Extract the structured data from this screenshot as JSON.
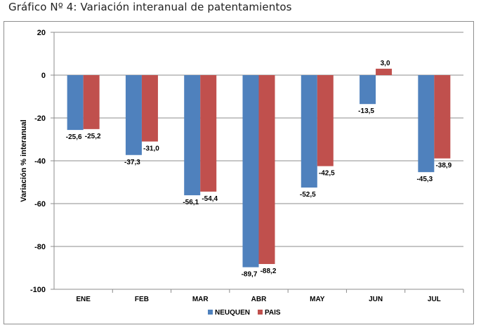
{
  "title": "Gráfico Nº 4: Variación interanual de patentamientos",
  "chart_data": {
    "type": "bar",
    "categories": [
      "ENE",
      "FEB",
      "MAR",
      "ABR",
      "MAY",
      "JUN",
      "JUL"
    ],
    "series": [
      {
        "name": "NEUQUEN",
        "color": "#4f81bd",
        "values": [
          -25.6,
          -37.3,
          -56.1,
          -89.7,
          -52.5,
          -13.5,
          -45.3
        ],
        "labels": [
          "-25,6",
          "-37,3",
          "-56,1",
          "-89,7",
          "-52,5",
          "-13,5",
          "-45,3"
        ]
      },
      {
        "name": "PAIS",
        "color": "#c0504d",
        "values": [
          -25.2,
          -31.0,
          -54.4,
          -88.2,
          -42.5,
          3.0,
          -38.9
        ],
        "labels": [
          "-25,2",
          "-31,0",
          "-54,4",
          "-88,2",
          "-42,5",
          "3,0",
          "-38,9"
        ]
      }
    ],
    "ylabel": "Variación % interanual",
    "xlabel": "",
    "ylim": [
      -100,
      20
    ],
    "yticks": [
      20,
      0,
      -20,
      -40,
      -60,
      -80,
      -100
    ],
    "ytick_labels": [
      "20",
      "0",
      "-20",
      "-40",
      "-60",
      "-80",
      "-100"
    ],
    "grid": true,
    "legend": "bottom-center"
  }
}
